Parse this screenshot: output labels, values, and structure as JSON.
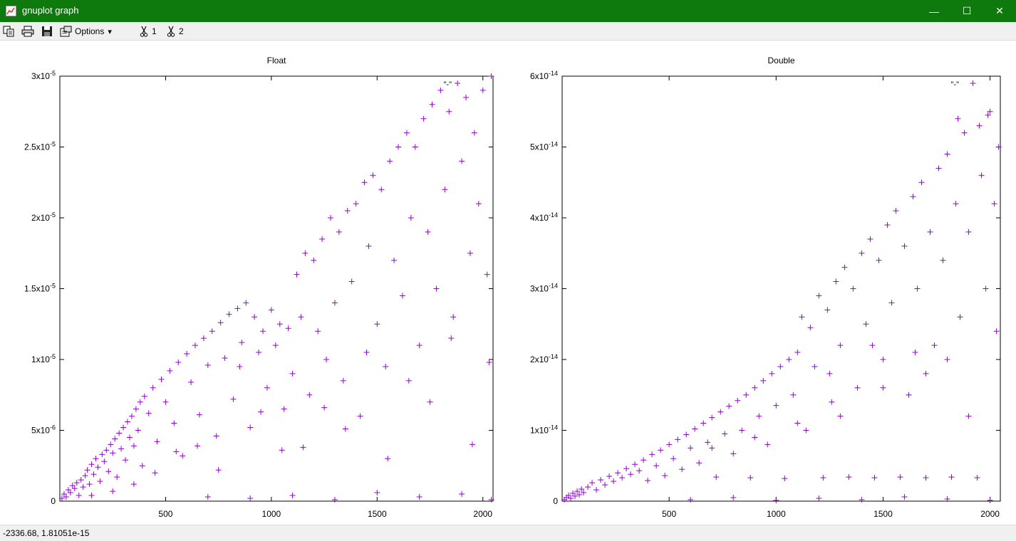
{
  "window": {
    "title": "gnuplot graph",
    "minimize_glyph": "—",
    "maximize_glyph": "☐",
    "close_glyph": "✕"
  },
  "toolbar": {
    "copy_icon": "copy-icon",
    "print_icon": "printer-icon",
    "save_icon": "save-icon",
    "options_label": "Options",
    "options_arrow": "▾",
    "plot1_label": "1",
    "plot2_label": "2"
  },
  "status": {
    "coords": "-2336.68,  1.81051e-15"
  },
  "colors": {
    "points": "#9400d3",
    "titlebar": "#0e7a0e"
  },
  "chart_data": [
    {
      "type": "scatter",
      "title": "Float",
      "legend": "\"-\"",
      "legend_position": "top-right",
      "xlim": [
        0,
        2048
      ],
      "ylim": [
        0,
        3e-05
      ],
      "xticks": [
        {
          "value": 500,
          "label": "500"
        },
        {
          "value": 1000,
          "label": "1000"
        },
        {
          "value": 1500,
          "label": "1500"
        },
        {
          "value": 2000,
          "label": "2000"
        }
      ],
      "yticks": [
        {
          "value": 0,
          "mant": "0",
          "exp": ""
        },
        {
          "value": 5e-06,
          "mant": "5x10",
          "exp": "-6"
        },
        {
          "value": 1e-05,
          "mant": "1x10",
          "exp": "-5"
        },
        {
          "value": 1.5e-05,
          "mant": "1.5x10",
          "exp": "-5"
        },
        {
          "value": 2e-05,
          "mant": "2x10",
          "exp": "-5"
        },
        {
          "value": 2.5e-05,
          "mant": "2.5x10",
          "exp": "-5"
        },
        {
          "value": 3e-05,
          "mant": "3x10",
          "exp": "-5"
        }
      ],
      "points": [
        [
          10,
          2e-07
        ],
        [
          20,
          5e-07
        ],
        [
          30,
          3e-07
        ],
        [
          40,
          8e-07
        ],
        [
          50,
          6e-07
        ],
        [
          60,
          1.1e-06
        ],
        [
          70,
          9e-07
        ],
        [
          80,
          1.3e-06
        ],
        [
          90,
          4e-07
        ],
        [
          100,
          1.5e-06
        ],
        [
          110,
          1e-06
        ],
        [
          120,
          1.8e-06
        ],
        [
          130,
          2.2e-06
        ],
        [
          140,
          1.2e-06
        ],
        [
          150,
          2.6e-06
        ],
        [
          160,
          1.9e-06
        ],
        [
          170,
          3e-06
        ],
        [
          180,
          2.4e-06
        ],
        [
          190,
          1.4e-06
        ],
        [
          200,
          3.3e-06
        ],
        [
          210,
          2.8e-06
        ],
        [
          220,
          3.6e-06
        ],
        [
          230,
          2.1e-06
        ],
        [
          240,
          4e-06
        ],
        [
          250,
          3.4e-06
        ],
        [
          260,
          4.4e-06
        ],
        [
          270,
          1.7e-06
        ],
        [
          280,
          4.8e-06
        ],
        [
          290,
          3.7e-06
        ],
        [
          300,
          5.2e-06
        ],
        [
          310,
          2.9e-06
        ],
        [
          320,
          5.6e-06
        ],
        [
          330,
          4.5e-06
        ],
        [
          340,
          6e-06
        ],
        [
          350,
          3.9e-06
        ],
        [
          360,
          6.5e-06
        ],
        [
          370,
          5e-06
        ],
        [
          380,
          7e-06
        ],
        [
          390,
          2.5e-06
        ],
        [
          400,
          7.4e-06
        ],
        [
          420,
          6.2e-06
        ],
        [
          440,
          8e-06
        ],
        [
          460,
          4.2e-06
        ],
        [
          480,
          8.6e-06
        ],
        [
          500,
          7e-06
        ],
        [
          520,
          9.2e-06
        ],
        [
          540,
          5.5e-06
        ],
        [
          560,
          9.8e-06
        ],
        [
          580,
          3.2e-06
        ],
        [
          600,
          1.04e-05
        ],
        [
          620,
          8.4e-06
        ],
        [
          640,
          1.1e-05
        ],
        [
          660,
          6.1e-06
        ],
        [
          680,
          1.15e-05
        ],
        [
          700,
          9.6e-06
        ],
        [
          720,
          1.2e-05
        ],
        [
          740,
          4.6e-06
        ],
        [
          760,
          1.26e-05
        ],
        [
          780,
          1.01e-05
        ],
        [
          800,
          1.32e-05
        ],
        [
          820,
          7.2e-06
        ],
        [
          840,
          1.36e-05
        ],
        [
          860,
          1.12e-05
        ],
        [
          880,
          1.4e-05
        ],
        [
          900,
          5.2e-06
        ],
        [
          920,
          1.3e-05
        ],
        [
          940,
          1.05e-05
        ],
        [
          960,
          1.2e-05
        ],
        [
          980,
          8e-06
        ],
        [
          1000,
          1.35e-05
        ],
        [
          1020,
          1.1e-05
        ],
        [
          1040,
          1.25e-05
        ],
        [
          1060,
          6.5e-06
        ],
        [
          1080,
          1.22e-05
        ],
        [
          1100,
          9e-06
        ],
        [
          1120,
          1.6e-05
        ],
        [
          1140,
          1.3e-05
        ],
        [
          1160,
          1.75e-05
        ],
        [
          1180,
          7.5e-06
        ],
        [
          1200,
          1.7e-05
        ],
        [
          1220,
          1.2e-05
        ],
        [
          1240,
          1.85e-05
        ],
        [
          1260,
          1e-05
        ],
        [
          1280,
          2e-05
        ],
        [
          1300,
          1.4e-05
        ],
        [
          1320,
          1.9e-05
        ],
        [
          1340,
          8.5e-06
        ],
        [
          1360,
          2.05e-05
        ],
        [
          1380,
          1.55e-05
        ],
        [
          1400,
          2.1e-05
        ],
        [
          1420,
          6e-06
        ],
        [
          1440,
          2.25e-05
        ],
        [
          1460,
          1.8e-05
        ],
        [
          1480,
          2.3e-05
        ],
        [
          1500,
          1.25e-05
        ],
        [
          1520,
          2.2e-05
        ],
        [
          1540,
          9.5e-06
        ],
        [
          1560,
          2.4e-05
        ],
        [
          1580,
          1.7e-05
        ],
        [
          1600,
          2.5e-05
        ],
        [
          1620,
          1.45e-05
        ],
        [
          1640,
          2.6e-05
        ],
        [
          1660,
          2e-05
        ],
        [
          1680,
          2.5e-05
        ],
        [
          1700,
          1.1e-05
        ],
        [
          1720,
          2.7e-05
        ],
        [
          1740,
          1.9e-05
        ],
        [
          1760,
          2.8e-05
        ],
        [
          1780,
          1.5e-05
        ],
        [
          1800,
          2.9e-05
        ],
        [
          1820,
          2.2e-05
        ],
        [
          1840,
          2.75e-05
        ],
        [
          1860,
          1.3e-05
        ],
        [
          1880,
          2.95e-05
        ],
        [
          1900,
          2.4e-05
        ],
        [
          1920,
          2.85e-05
        ],
        [
          1940,
          1.75e-05
        ],
        [
          1960,
          2.6e-05
        ],
        [
          1980,
          2.1e-05
        ],
        [
          2000,
          2.9e-05
        ],
        [
          2020,
          1.6e-05
        ],
        [
          2040,
          3e-05
        ],
        [
          700,
          3e-07
        ],
        [
          900,
          2e-07
        ],
        [
          1100,
          4e-07
        ],
        [
          1300,
          1e-07
        ],
        [
          1500,
          6e-07
        ],
        [
          1700,
          3e-07
        ],
        [
          1900,
          5e-07
        ],
        [
          2040,
          1e-07
        ],
        [
          550,
          3.5e-06
        ],
        [
          750,
          2.2e-06
        ],
        [
          950,
          6.3e-06
        ],
        [
          1150,
          3.8e-06
        ],
        [
          1350,
          5.1e-06
        ],
        [
          1550,
          3e-06
        ],
        [
          1750,
          7e-06
        ],
        [
          1950,
          4e-06
        ],
        [
          850,
          9.5e-06
        ],
        [
          1250,
          6.6e-06
        ],
        [
          1450,
          1.05e-05
        ],
        [
          1650,
          8.5e-06
        ],
        [
          1850,
          1.15e-05
        ],
        [
          2030,
          9.8e-06
        ],
        [
          650,
          3.9e-06
        ],
        [
          450,
          2e-06
        ],
        [
          350,
          1.2e-06
        ],
        [
          250,
          7e-07
        ],
        [
          150,
          4e-07
        ],
        [
          1050,
          3.6e-06
        ]
      ]
    },
    {
      "type": "scatter",
      "title": "Double",
      "legend": "\"-\"",
      "legend_position": "top-right",
      "xlim": [
        0,
        2048
      ],
      "ylim": [
        0,
        6e-14
      ],
      "xticks": [
        {
          "value": 500,
          "label": "500"
        },
        {
          "value": 1000,
          "label": "1000"
        },
        {
          "value": 1500,
          "label": "1500"
        },
        {
          "value": 2000,
          "label": "2000"
        }
      ],
      "yticks": [
        {
          "value": 0,
          "mant": "0",
          "exp": ""
        },
        {
          "value": 1e-14,
          "mant": "1x10",
          "exp": "-14"
        },
        {
          "value": 2e-14,
          "mant": "2x10",
          "exp": "-14"
        },
        {
          "value": 3e-14,
          "mant": "3x10",
          "exp": "-14"
        },
        {
          "value": 4e-14,
          "mant": "4x10",
          "exp": "-14"
        },
        {
          "value": 5e-14,
          "mant": "5x10",
          "exp": "-14"
        },
        {
          "value": 6e-14,
          "mant": "6x10",
          "exp": "-14"
        }
      ],
      "points": [
        [
          10,
          2e-16
        ],
        [
          20,
          5e-16
        ],
        [
          30,
          8e-16
        ],
        [
          40,
          4e-16
        ],
        [
          50,
          1.1e-15
        ],
        [
          60,
          7e-16
        ],
        [
          70,
          1.4e-15
        ],
        [
          80,
          9e-16
        ],
        [
          90,
          1.7e-15
        ],
        [
          100,
          1.2e-15
        ],
        [
          120,
          2e-15
        ],
        [
          140,
          2.6e-15
        ],
        [
          160,
          1.6e-15
        ],
        [
          180,
          3e-15
        ],
        [
          200,
          2.3e-15
        ],
        [
          220,
          3.5e-15
        ],
        [
          240,
          2.8e-15
        ],
        [
          260,
          4e-15
        ],
        [
          280,
          3.3e-15
        ],
        [
          300,
          4.6e-15
        ],
        [
          320,
          3.8e-15
        ],
        [
          340,
          5.2e-15
        ],
        [
          360,
          4.3e-15
        ],
        [
          380,
          5.8e-15
        ],
        [
          400,
          2.9e-15
        ],
        [
          420,
          6.6e-15
        ],
        [
          440,
          5e-15
        ],
        [
          460,
          7.2e-15
        ],
        [
          480,
          3.6e-15
        ],
        [
          500,
          8e-15
        ],
        [
          520,
          6e-15
        ],
        [
          540,
          8.7e-15
        ],
        [
          560,
          4.5e-15
        ],
        [
          580,
          9.4e-15
        ],
        [
          600,
          7.5e-15
        ],
        [
          620,
          1.02e-14
        ],
        [
          640,
          5.4e-15
        ],
        [
          660,
          1.1e-14
        ],
        [
          680,
          8.3e-15
        ],
        [
          700,
          1.18e-14
        ],
        [
          720,
          3.4e-15
        ],
        [
          740,
          1.26e-14
        ],
        [
          760,
          9.5e-15
        ],
        [
          780,
          1.34e-14
        ],
        [
          800,
          6.7e-15
        ],
        [
          820,
          1.42e-14
        ],
        [
          840,
          1e-14
        ],
        [
          860,
          1.5e-14
        ],
        [
          880,
          3.3e-15
        ],
        [
          900,
          1.6e-14
        ],
        [
          920,
          1.2e-14
        ],
        [
          940,
          1.7e-14
        ],
        [
          960,
          8e-15
        ],
        [
          980,
          1.8e-14
        ],
        [
          1000,
          1.35e-14
        ],
        [
          1020,
          1.9e-14
        ],
        [
          1040,
          3.2e-15
        ],
        [
          1060,
          2e-14
        ],
        [
          1080,
          1.5e-14
        ],
        [
          1100,
          2.1e-14
        ],
        [
          1120,
          2.6e-14
        ],
        [
          1140,
          1e-14
        ],
        [
          1160,
          2.45e-14
        ],
        [
          1180,
          1.9e-14
        ],
        [
          1200,
          2.9e-14
        ],
        [
          1220,
          3.3e-15
        ],
        [
          1240,
          2.7e-14
        ],
        [
          1260,
          1.4e-14
        ],
        [
          1280,
          3.1e-14
        ],
        [
          1300,
          2.2e-14
        ],
        [
          1320,
          3.3e-14
        ],
        [
          1340,
          3.4e-15
        ],
        [
          1360,
          3e-14
        ],
        [
          1380,
          1.6e-14
        ],
        [
          1400,
          3.5e-14
        ],
        [
          1420,
          2.5e-14
        ],
        [
          1440,
          3.7e-14
        ],
        [
          1460,
          3.3e-15
        ],
        [
          1480,
          3.4e-14
        ],
        [
          1500,
          2e-14
        ],
        [
          1520,
          3.9e-14
        ],
        [
          1540,
          2.8e-14
        ],
        [
          1560,
          4.1e-14
        ],
        [
          1580,
          3.4e-15
        ],
        [
          1600,
          3.6e-14
        ],
        [
          1620,
          1.5e-14
        ],
        [
          1640,
          4.3e-14
        ],
        [
          1660,
          3e-14
        ],
        [
          1680,
          4.5e-14
        ],
        [
          1700,
          3.3e-15
        ],
        [
          1720,
          3.8e-14
        ],
        [
          1740,
          2.2e-14
        ],
        [
          1760,
          4.7e-14
        ],
        [
          1780,
          3.4e-14
        ],
        [
          1800,
          4.9e-14
        ],
        [
          1820,
          3.4e-15
        ],
        [
          1840,
          4.2e-14
        ],
        [
          1860,
          2.6e-14
        ],
        [
          1880,
          5.2e-14
        ],
        [
          1900,
          3.8e-14
        ],
        [
          1920,
          5.9e-14
        ],
        [
          1940,
          3.3e-15
        ],
        [
          1960,
          4.6e-14
        ],
        [
          1980,
          3e-14
        ],
        [
          2000,
          5.5e-14
        ],
        [
          2020,
          4.2e-14
        ],
        [
          2040,
          5e-14
        ],
        [
          1850,
          5.4e-14
        ],
        [
          1950,
          5.3e-14
        ],
        [
          1990,
          5.45e-14
        ],
        [
          600,
          2e-16
        ],
        [
          800,
          5e-16
        ],
        [
          1000,
          1e-16
        ],
        [
          1200,
          4e-16
        ],
        [
          1400,
          2e-16
        ],
        [
          1600,
          6e-16
        ],
        [
          1800,
          3e-16
        ],
        [
          2000,
          1e-16
        ],
        [
          1700,
          1.8e-14
        ],
        [
          1900,
          1.2e-14
        ],
        [
          1300,
          1.2e-14
        ],
        [
          1100,
          1.1e-14
        ],
        [
          900,
          9e-15
        ],
        [
          700,
          7.5e-15
        ],
        [
          1500,
          1.6e-14
        ],
        [
          1800,
          2e-14
        ],
        [
          2030,
          2.4e-14
        ],
        [
          1650,
          2.1e-14
        ],
        [
          1450,
          2.2e-14
        ],
        [
          1250,
          1.8e-14
        ]
      ]
    }
  ]
}
